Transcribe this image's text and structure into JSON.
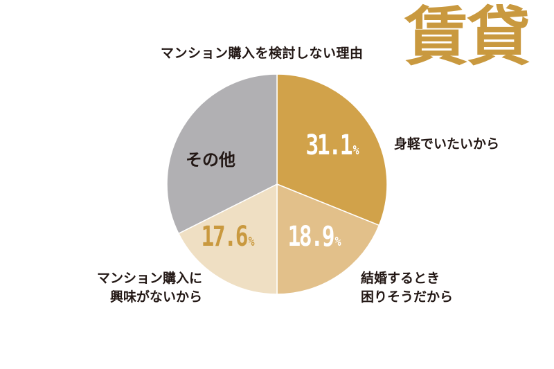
{
  "header": {
    "title": "マンション購入を検討しない理由",
    "badge": "賃貸"
  },
  "colors": {
    "accent": "#cc9f45",
    "badge": "#c9993f",
    "text": "#231815",
    "slice_gold": "#d1a24a",
    "slice_tan": "#e2c08a",
    "slice_cream": "#efdfc3",
    "slice_gray": "#b1b0b3"
  },
  "chart_data": {
    "type": "pie",
    "title": "マンション購入を検討しない理由",
    "slices": [
      {
        "label": "身軽でいたいから",
        "value": 31.1,
        "display": "31.1",
        "unit": "%",
        "color": "#d1a24a",
        "value_color": "#ffffff"
      },
      {
        "label": "結婚するとき困りそうだから",
        "value": 18.9,
        "display": "18.9",
        "unit": "%",
        "color": "#e2c08a",
        "value_color": "#ffffff"
      },
      {
        "label": "マンション購入に興味がないから",
        "value": 17.6,
        "display": "17.6",
        "unit": "%",
        "color": "#efdfc3",
        "value_color": "#c9993f"
      },
      {
        "label": "その他",
        "value": 32.4,
        "display": "",
        "unit": "",
        "color": "#b1b0b3",
        "value_color": "#ffffff"
      }
    ],
    "labels": {
      "light": "身軽でいたいから",
      "marriage_line1": "結婚するとき",
      "marriage_line2": "困りそうだから",
      "interest_line1": "マンション購入に",
      "interest_line2": "興味がないから",
      "other": "その他"
    }
  }
}
